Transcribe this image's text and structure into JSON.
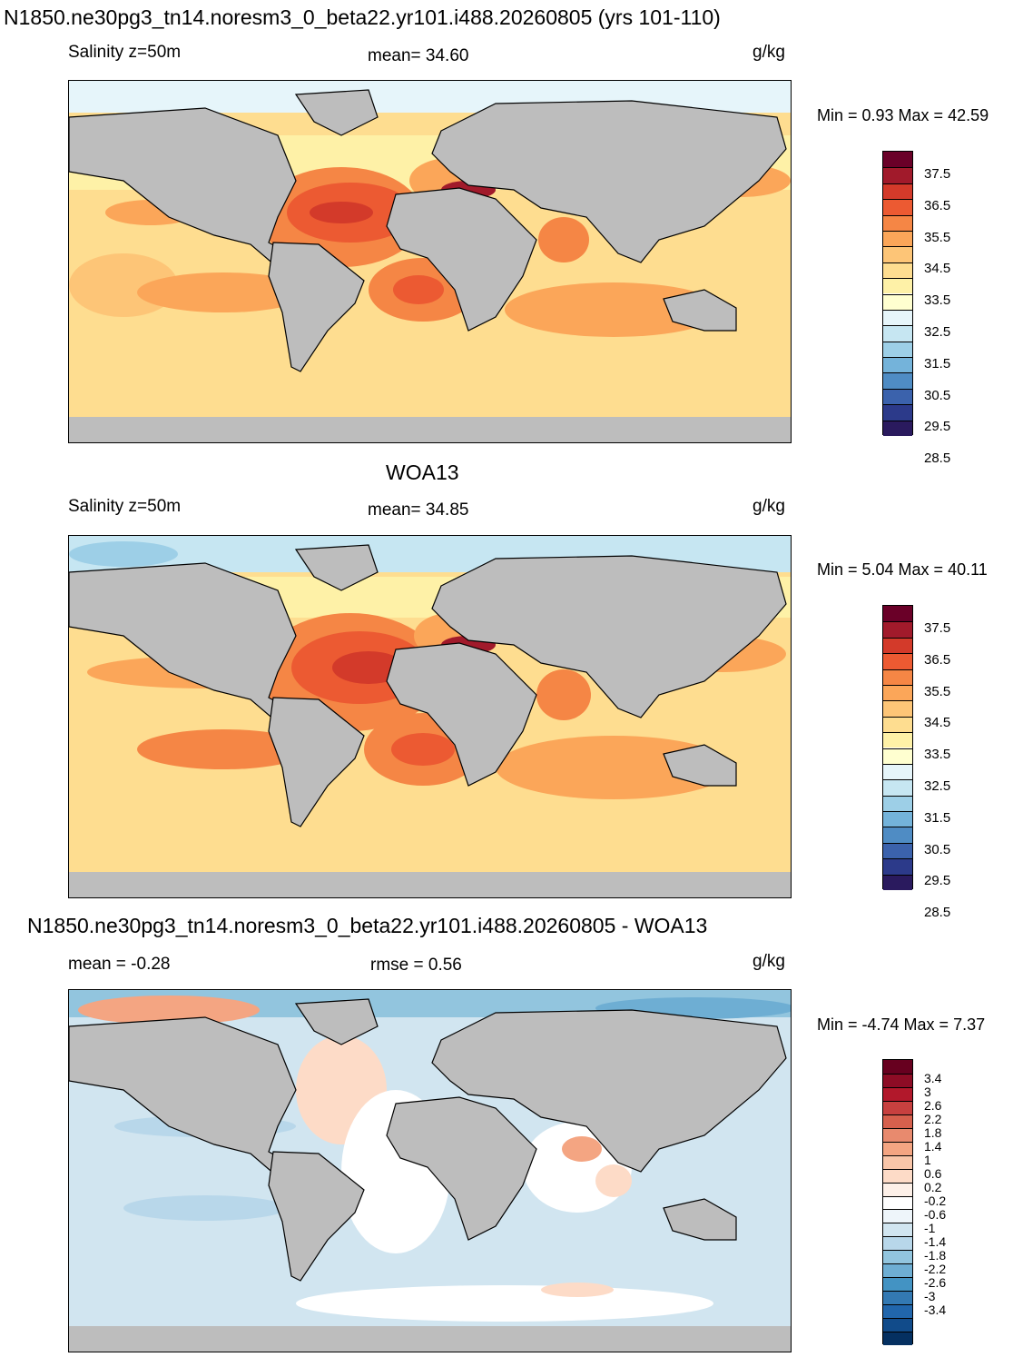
{
  "panels": [
    {
      "title": "N1850.ne30pg3_tn14.noresm3_0_beta22.yr101.i488.20260805 (yrs 101-110)",
      "left_label": "Salinity z=50m",
      "center_label": "mean=  34.60",
      "units": "g/kg",
      "minmax": "Min =   0.93 Max =  42.59",
      "colorbar": {
        "colors": [
          "#6a0028",
          "#a11a2b",
          "#d33a2a",
          "#ec5a32",
          "#f58645",
          "#fba659",
          "#fdc577",
          "#fedd90",
          "#fef1a7",
          "#ffffd0",
          "#e6f5fa",
          "#c6e6f2",
          "#9dcfe7",
          "#74b3da",
          "#4f8cc4",
          "#3b62ac",
          "#2c3a8a",
          "#2a1a5e"
        ],
        "labels": [
          "37.5",
          "36.5",
          "35.5",
          "34.5",
          "33.5",
          "32.5",
          "31.5",
          "30.5",
          "29.5",
          "28.5"
        ]
      }
    },
    {
      "title": "WOA13",
      "left_label": "Salinity z=50m",
      "center_label": "mean=  34.85",
      "units": "g/kg",
      "minmax": "Min =   5.04 Max =  40.11",
      "colorbar": {
        "colors": [
          "#6a0028",
          "#a11a2b",
          "#d33a2a",
          "#ec5a32",
          "#f58645",
          "#fba659",
          "#fdc577",
          "#fedd90",
          "#fef1a7",
          "#ffffd0",
          "#e6f5fa",
          "#c6e6f2",
          "#9dcfe7",
          "#74b3da",
          "#4f8cc4",
          "#3b62ac",
          "#2c3a8a",
          "#2a1a5e"
        ],
        "labels": [
          "37.5",
          "36.5",
          "35.5",
          "34.5",
          "33.5",
          "32.5",
          "31.5",
          "30.5",
          "29.5",
          "28.5"
        ]
      }
    },
    {
      "title": "N1850.ne30pg3_tn14.noresm3_0_beta22.yr101.i488.20260805 - WOA13",
      "left_label": "mean =  -0.28",
      "center_label": "rmse =    0.56",
      "units": "g/kg",
      "minmax": "Min =  -4.74 Max =   7.37",
      "colorbar": {
        "colors": [
          "#67001f",
          "#8d0c25",
          "#b2182b",
          "#c7403f",
          "#d6604d",
          "#e88a6e",
          "#f4a582",
          "#f9c6a9",
          "#fddbc7",
          "#fdf0e8",
          "#ffffff",
          "#eef5fa",
          "#d1e5f0",
          "#b8d7ea",
          "#92c5de",
          "#6eaed3",
          "#4393c3",
          "#3379b3",
          "#2166ac",
          "#114b8a",
          "#053061"
        ],
        "labels": [
          "3.4",
          "3",
          "2.6",
          "2.2",
          "1.8",
          "1.4",
          "1",
          "0.6",
          "0.2",
          "-0.2",
          "-0.6",
          "-1",
          "-1.4",
          "-1.8",
          "-2.2",
          "-2.6",
          "-3",
          "-3.4"
        ]
      }
    }
  ]
}
